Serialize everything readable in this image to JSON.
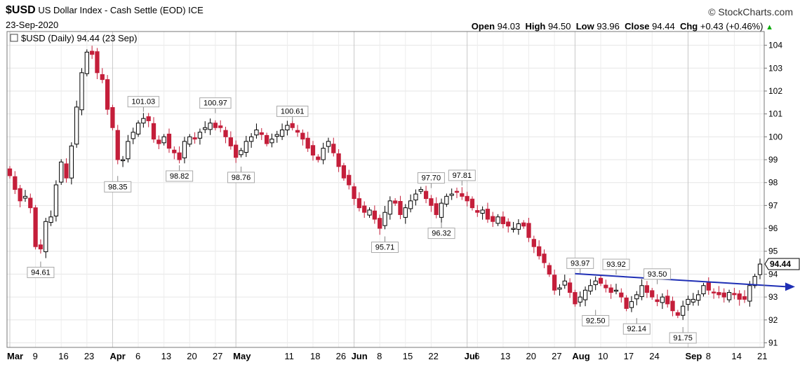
{
  "header": {
    "symbol": "$USD",
    "name": "US Dollar Index - Cash Settle (EOD)",
    "exchange": "ICE",
    "date": "23-Sep-2020",
    "brand": "© StockCharts.com",
    "open_label": "Open",
    "open": "94.03",
    "high_label": "High",
    "high": "94.50",
    "low_label": "Low",
    "low": "93.96",
    "close_label": "Close",
    "close": "94.44",
    "chg_label": "Chg",
    "chg": "+0.43 (+0.46%)",
    "legend": "$USD (Daily) 94.44 (23 Sep)",
    "last_price": "94.44"
  },
  "colors": {
    "up": "#ffffff",
    "down": "#c41e3a",
    "trend": "#1f2fb5"
  },
  "chart_data": {
    "type": "candlestick",
    "title": "$USD (Daily) 94.44 (23 Sep)",
    "ylim": [
      90.8,
      104.6
    ],
    "yticks": [
      91,
      92,
      93,
      94,
      95,
      96,
      97,
      98,
      99,
      100,
      101,
      102,
      103,
      104
    ],
    "xticks": [
      {
        "label": "Mar",
        "i": 0,
        "bold": true
      },
      {
        "label": "9",
        "i": 5
      },
      {
        "label": "16",
        "i": 10
      },
      {
        "label": "23",
        "i": 15
      },
      {
        "label": "Apr",
        "i": 20,
        "bold": true
      },
      {
        "label": "6",
        "i": 25
      },
      {
        "label": "13",
        "i": 30
      },
      {
        "label": "20",
        "i": 35
      },
      {
        "label": "27",
        "i": 40
      },
      {
        "label": "May",
        "i": 44,
        "bold": true
      },
      {
        "label": "11",
        "i": 54
      },
      {
        "label": "18",
        "i": 59
      },
      {
        "label": "26",
        "i": 64
      },
      {
        "label": "Jun",
        "i": 67,
        "bold": true
      },
      {
        "label": "8",
        "i": 72
      },
      {
        "label": "15",
        "i": 77
      },
      {
        "label": "22",
        "i": 82
      },
      {
        "label": "Jul",
        "i": 89,
        "bold": true
      },
      {
        "label": "6",
        "i": 91
      },
      {
        "label": "13",
        "i": 96
      },
      {
        "label": "20",
        "i": 101
      },
      {
        "label": "27",
        "i": 106
      },
      {
        "label": "Aug",
        "i": 110,
        "bold": true
      },
      {
        "label": "10",
        "i": 115
      },
      {
        "label": "17",
        "i": 120
      },
      {
        "label": "24",
        "i": 125
      },
      {
        "label": "Sep",
        "i": 132,
        "bold": true
      },
      {
        "label": "8",
        "i": 136
      },
      {
        "label": "14",
        "i": 141
      },
      {
        "label": "21",
        "i": 146
      }
    ],
    "annotations": [
      {
        "text": "94.61",
        "i": 6,
        "y": 94.61,
        "pos": "below"
      },
      {
        "text": "98.35",
        "i": 21,
        "y": 98.35,
        "pos": "below"
      },
      {
        "text": "101.03",
        "i": 26,
        "y": 101.03,
        "pos": "above"
      },
      {
        "text": "98.82",
        "i": 33,
        "y": 98.82,
        "pos": "below"
      },
      {
        "text": "100.97",
        "i": 40,
        "y": 100.97,
        "pos": "above"
      },
      {
        "text": "98.76",
        "i": 45,
        "y": 98.76,
        "pos": "below"
      },
      {
        "text": "100.61",
        "i": 55,
        "y": 100.61,
        "pos": "above"
      },
      {
        "text": "95.71",
        "i": 73,
        "y": 95.71,
        "pos": "below"
      },
      {
        "text": "97.70",
        "i": 82,
        "y": 97.7,
        "pos": "above"
      },
      {
        "text": "96.32",
        "i": 84,
        "y": 96.32,
        "pos": "below"
      },
      {
        "text": "97.81",
        "i": 88,
        "y": 97.81,
        "pos": "above"
      },
      {
        "text": "93.97",
        "i": 111,
        "y": 93.97,
        "pos": "above"
      },
      {
        "text": "92.50",
        "i": 114,
        "y": 92.5,
        "pos": "below"
      },
      {
        "text": "93.92",
        "i": 118,
        "y": 93.92,
        "pos": "above"
      },
      {
        "text": "92.14",
        "i": 122,
        "y": 92.14,
        "pos": "below"
      },
      {
        "text": "93.50",
        "i": 126,
        "y": 93.5,
        "pos": "above"
      },
      {
        "text": "91.75",
        "i": 131,
        "y": 91.75,
        "pos": "below"
      }
    ],
    "trendline": {
      "start": {
        "i": 110,
        "y": 94.02
      },
      "end": {
        "i": 152,
        "y": 93.45
      }
    },
    "closes": [
      98.3,
      97.7,
      97.2,
      97.4,
      96.9,
      95.2,
      95.1,
      96.3,
      96.5,
      97.9,
      98.9,
      98.2,
      99.6,
      101.3,
      102.8,
      103.7,
      103.6,
      102.8,
      102.5,
      101.2,
      100.4,
      99.0,
      99.0,
      99.8,
      100.2,
      100.6,
      100.8,
      100.7,
      99.9,
      99.7,
      100.0,
      99.5,
      99.3,
      99.0,
      99.8,
      100.0,
      99.9,
      100.2,
      100.4,
      100.6,
      100.4,
      100.4,
      100.0,
      99.6,
      99.1,
      99.4,
      99.8,
      100.0,
      100.3,
      100.1,
      99.7,
      99.9,
      100.1,
      100.3,
      100.5,
      100.4,
      100.2,
      99.9,
      99.5,
      99.2,
      99.0,
      99.5,
      99.8,
      99.3,
      98.7,
      98.2,
      97.9,
      97.3,
      96.9,
      96.7,
      96.8,
      96.4,
      96.0,
      96.7,
      97.2,
      97.1,
      96.6,
      96.9,
      97.2,
      97.5,
      97.7,
      97.3,
      97.0,
      96.6,
      97.1,
      97.4,
      97.5,
      97.6,
      97.4,
      97.2,
      96.9,
      96.7,
      96.8,
      96.4,
      96.3,
      96.5,
      96.2,
      96.1,
      96.0,
      96.2,
      96.1,
      95.6,
      95.2,
      94.8,
      94.5,
      94.0,
      93.3,
      93.4,
      93.7,
      93.2,
      92.7,
      93.0,
      93.3,
      93.5,
      93.7,
      93.6,
      93.4,
      93.2,
      93.3,
      93.0,
      92.5,
      92.8,
      93.1,
      93.5,
      93.2,
      93.0,
      92.8,
      93.0,
      92.7,
      92.4,
      92.2,
      92.6,
      92.9,
      92.9,
      93.1,
      93.5,
      93.3,
      93.2,
      93.1,
      93.0,
      93.2,
      93.1,
      92.9,
      92.9,
      93.5,
      93.9,
      94.44
    ]
  }
}
